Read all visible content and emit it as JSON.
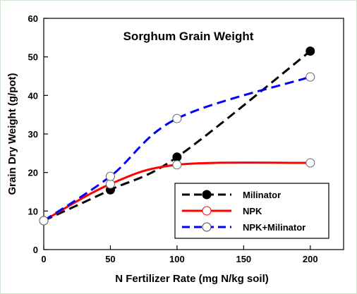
{
  "chart_data": {
    "type": "line",
    "title": "Sorghum Grain Weight",
    "xlabel": "N Fertilizer Rate (mg N/kg soil)",
    "ylabel": "Grain Dry Weight (g/pot)",
    "xlim": [
      0,
      225
    ],
    "ylim": [
      0,
      60
    ],
    "xticks": [
      0,
      50,
      100,
      150,
      200
    ],
    "yticks": [
      0,
      10,
      20,
      30,
      40,
      50,
      60
    ],
    "grid": false,
    "legend_position": "bottom-right",
    "series": [
      {
        "name": "Milinator",
        "x": [
          0,
          50,
          100,
          200
        ],
        "y": [
          7.5,
          15.5,
          24,
          51.5
        ],
        "color": "#000000",
        "line_style": "dashed",
        "marker": "filled-circle"
      },
      {
        "name": "NPK",
        "x": [
          0,
          50,
          100,
          200
        ],
        "y": [
          7.5,
          17,
          22,
          22.5
        ],
        "color": "#ff0000",
        "line_style": "solid",
        "marker": "open-circle"
      },
      {
        "name": "NPK+Milinator",
        "x": [
          0,
          50,
          100,
          200
        ],
        "y": [
          7.5,
          19,
          34,
          44.8
        ],
        "color": "#0000ff",
        "line_style": "dashed",
        "marker": "open-circle"
      }
    ]
  }
}
